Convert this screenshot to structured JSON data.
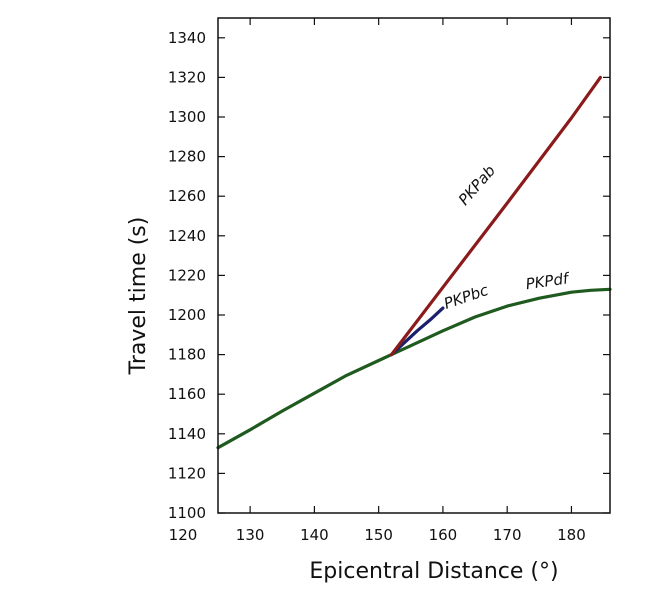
{
  "chart_data": {
    "type": "line",
    "title": "",
    "xlabel": "Epicentral Distance (°)",
    "ylabel": "Travel time (s)",
    "xlim": [
      125,
      186
    ],
    "ylim": [
      1100,
      1350
    ],
    "x_ticks": [
      120,
      130,
      140,
      150,
      160,
      170,
      180
    ],
    "x_tick_labels": [
      "120",
      "130",
      "140",
      "150",
      "160",
      "170",
      "180"
    ],
    "y_ticks": [
      1100,
      1120,
      1140,
      1160,
      1180,
      1200,
      1220,
      1240,
      1260,
      1280,
      1300,
      1320,
      1340
    ],
    "y_tick_labels": [
      "1100",
      "1120",
      "1140",
      "1160",
      "1180",
      "1200",
      "1220",
      "1240",
      "1260",
      "1280",
      "1300",
      "1320",
      "1340"
    ],
    "grid": false,
    "series": [
      {
        "name": "PKPdf",
        "label": "PKPdf",
        "color": "#1f5a1f",
        "x": [
          125,
          130,
          135,
          140,
          145,
          150,
          152,
          155,
          160,
          165,
          170,
          175,
          180,
          183,
          186
        ],
        "y": [
          1133,
          1142,
          1151.5,
          1160.5,
          1169.5,
          1177,
          1180,
          1184.5,
          1192,
          1199,
          1204.5,
          1208.5,
          1211.5,
          1212.5,
          1213
        ]
      },
      {
        "name": "PKPbc",
        "label": "PKPbc",
        "color": "#1a1f6e",
        "x": [
          152,
          154,
          156,
          158,
          160
        ],
        "y": [
          1180,
          1186,
          1192,
          1197.5,
          1203.5
        ]
      },
      {
        "name": "PKPab",
        "label": "PKPab",
        "color": "#8b1a1a",
        "x": [
          152,
          160,
          170,
          180,
          184.5
        ],
        "y": [
          1180,
          1214,
          1256.5,
          1299.5,
          1320
        ]
      }
    ]
  }
}
